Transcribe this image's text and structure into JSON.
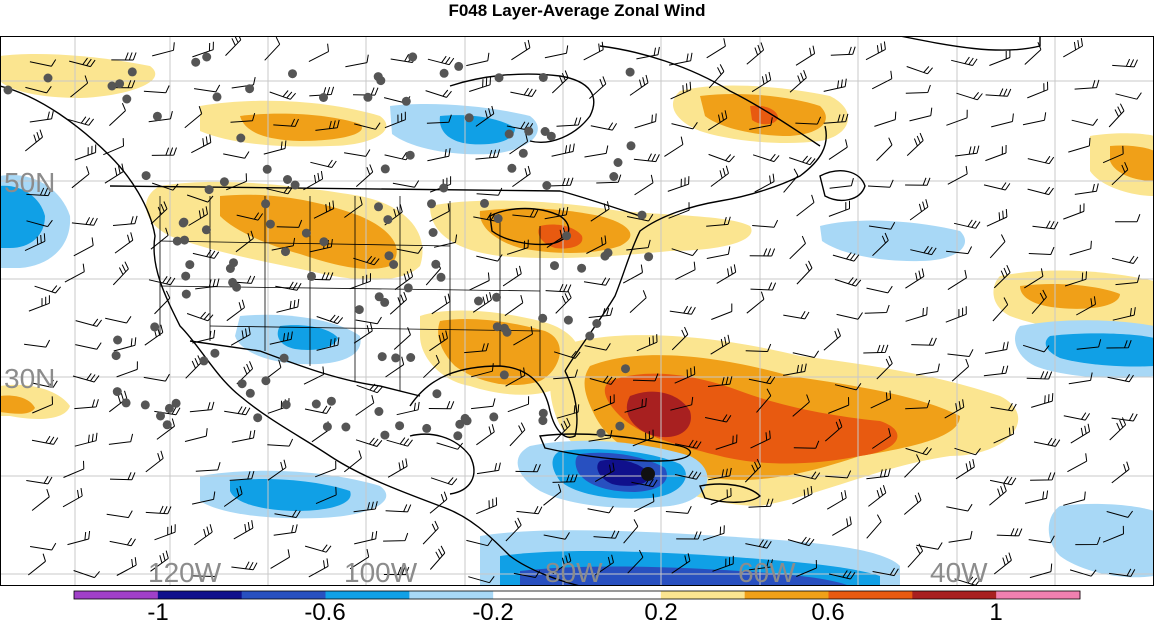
{
  "title": "F048 Layer-Average Zonal Wind",
  "map": {
    "lat_labels": [
      "50N",
      "30N"
    ],
    "lon_labels": [
      "120W",
      "100W",
      "80W",
      "60W",
      "40W"
    ],
    "label_color": "#8c8c8c",
    "grid_color": "#c8c8c8",
    "coast_color": "#000000",
    "station_color": "#555555"
  },
  "colorbar": {
    "tick_labels": [
      "-1",
      "-0.6",
      "-0.2",
      "0.2",
      "0.6",
      "1"
    ],
    "colors": [
      "#a040c8",
      "#10108c",
      "#2850c0",
      "#10a0e6",
      "#a8d8f6",
      "#ffffff",
      "#ffffff",
      "#fbe590",
      "#f0a018",
      "#e85a10",
      "#a82020",
      "#f080b0"
    ]
  },
  "contour_colors": {
    "light_blue": "#a8d8f6",
    "blue": "#10a0e6",
    "mid_blue": "#2850c0",
    "dark_blue": "#10108c",
    "light_yellow": "#fbe590",
    "orange": "#f0a018",
    "red_orange": "#e85a10",
    "dark_red": "#a82020"
  }
}
